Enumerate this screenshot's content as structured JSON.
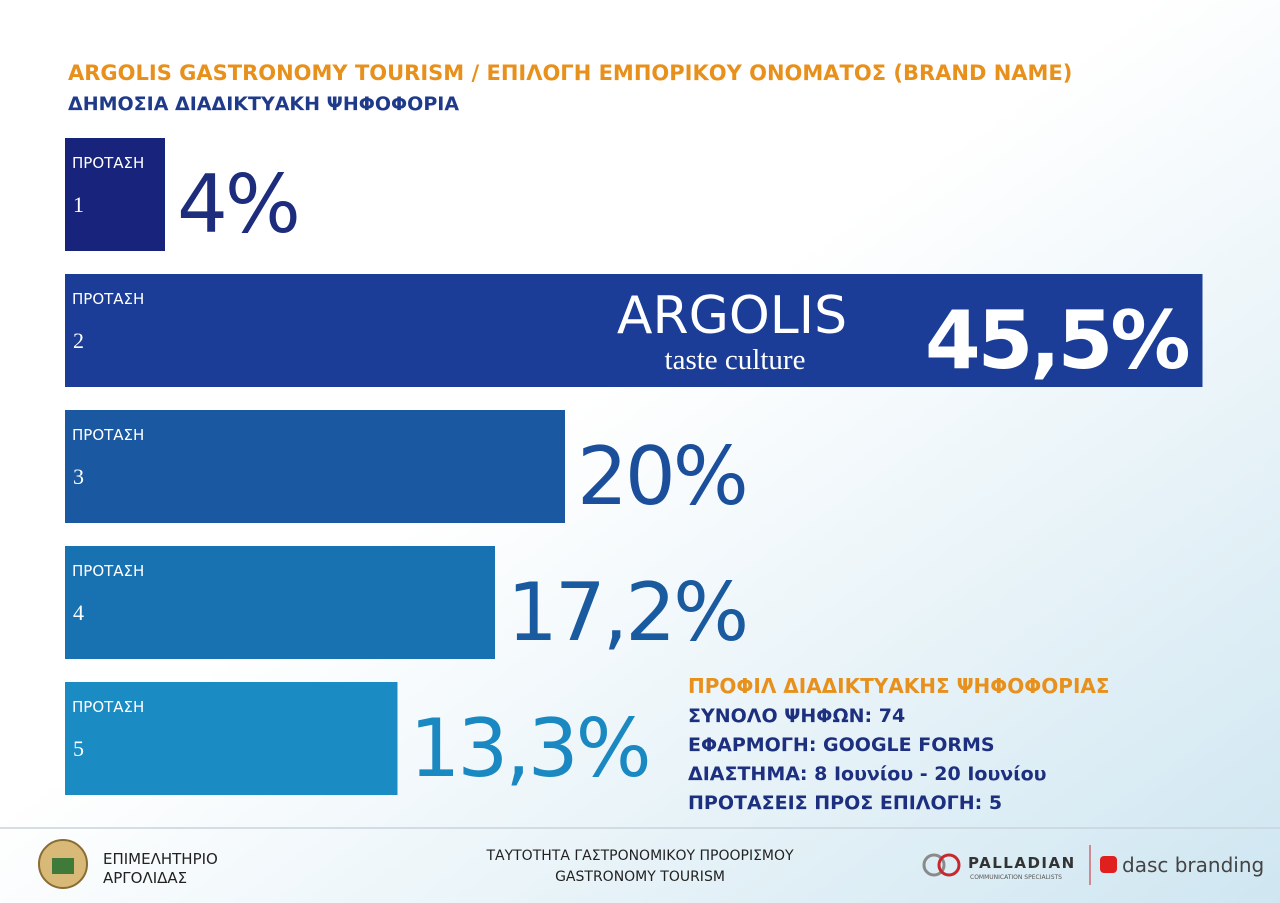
{
  "chart_data": {
    "type": "bar",
    "orientation": "horizontal",
    "title": "ARGOLIS GASTRONOMY TOURISM / ΕΠΙΛΟΓΗ ΕΜΠΟΡΙΚΟΥ ΟΝΟΜΑΤΟΣ (BRAND NAME)",
    "subtitle": "ΔΗΜΟΣΙΑ ΔΙΑΔΙΚΤΥΑΚΗ ΨΗΦΟΦΟΡΙΑ",
    "category_label": "ΠΡΟΤΑΣΗ",
    "categories": [
      "1",
      "2",
      "3",
      "4",
      "5"
    ],
    "values": [
      4,
      45.5,
      20,
      17.2,
      13.3
    ],
    "value_labels": [
      "4%",
      "45,5%",
      "20%",
      "17,2%",
      "13,3%"
    ],
    "colors": [
      "#18247c",
      "#1b3d97",
      "#1a59a2",
      "#1872b2",
      "#1b8bc4"
    ],
    "label_colors": [
      "#1d2c7c",
      "#ffffff",
      "#1b4f9c",
      "#1a5a9f",
      "#1a88c1"
    ],
    "annotations": [
      "ARGOLIS",
      "taste culture"
    ]
  },
  "profile": {
    "title": "ΠΡΟΦΙΛ ΔΙΑΔΙΚΤΥΑΚΗΣ ΨΗΦΟΦΟΡΙΑΣ",
    "lines": [
      "ΣΥΝΟΛΟ ΨΗΦΩΝ: 74",
      "ΕΦΑΡΜΟΓΗ: GOOGLE FORMS",
      "ΔΙΑΣΤΗΜΑ: 8 Ιουνίου - 20 Ιουνίου",
      "ΠΡΟΤΑΣΕΙΣ ΠΡΟΣ ΕΠΙΛΟΓΗ: 5"
    ]
  },
  "footer": {
    "org": [
      "ΕΠΙΜΕΛΗΤΗΡΙΟ",
      "ΑΡΓΟΛΙΔΑΣ"
    ],
    "center": [
      "ΤΑΥΤΟΤΗΤΑ ΓΑΣΤΡΟΝΟΜΙΚΟΥ ΠΡΟΟΡΙΣΜΟΥ",
      "GASTRONOMY TOURISM"
    ],
    "palladian": "PALLADIAN",
    "palladian_sub": "COMMUNICATION SPECIALISTS",
    "dasc": "dasc branding"
  }
}
